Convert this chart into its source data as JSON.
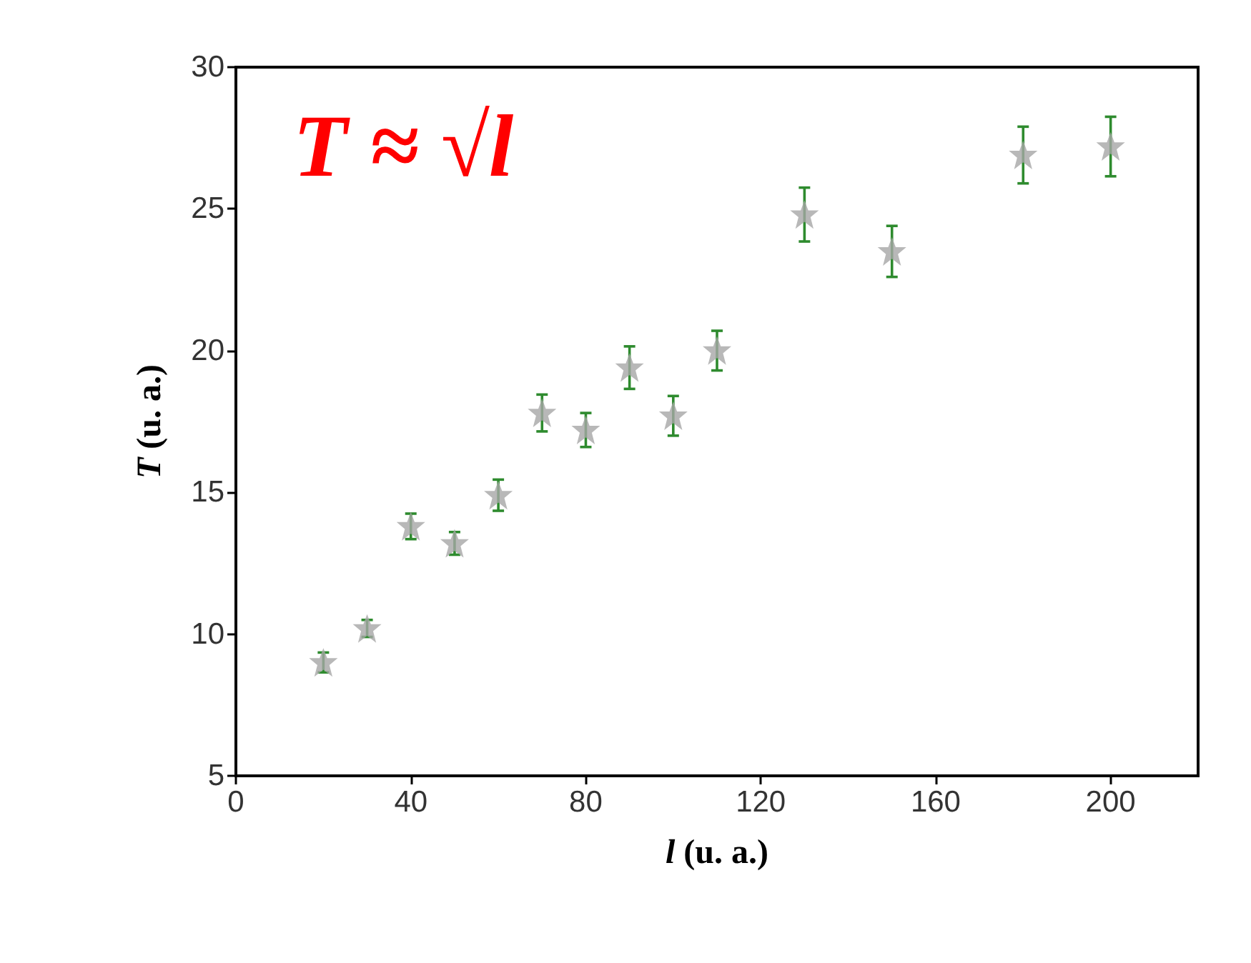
{
  "chart_data": {
    "type": "scatter",
    "xlabel": "l (u. a.)",
    "ylabel": "T (u. a.)",
    "annotations": [
      "T ≈ √l"
    ],
    "x": [
      20,
      30,
      40,
      50,
      60,
      70,
      80,
      90,
      100,
      110,
      130,
      150,
      180,
      200
    ],
    "series": [
      {
        "color": "#a6a6a6",
        "values": [
          9.0,
          10.2,
          13.8,
          13.2,
          14.9,
          17.8,
          17.2,
          19.4,
          17.7,
          20.0,
          24.8,
          23.5,
          26.9,
          27.2
        ],
        "errors": [
          0.35,
          0.3,
          0.45,
          0.4,
          0.55,
          0.65,
          0.6,
          0.75,
          0.7,
          0.7,
          0.95,
          0.9,
          1.0,
          1.05
        ]
      }
    ],
    "xlim": [
      0,
      220
    ],
    "xticks": [
      0,
      40,
      80,
      120,
      160,
      200
    ],
    "ylim": [
      5,
      30
    ],
    "yticks": [
      5,
      10,
      15,
      20,
      25,
      30
    ],
    "marker": "star",
    "grid": false
  }
}
